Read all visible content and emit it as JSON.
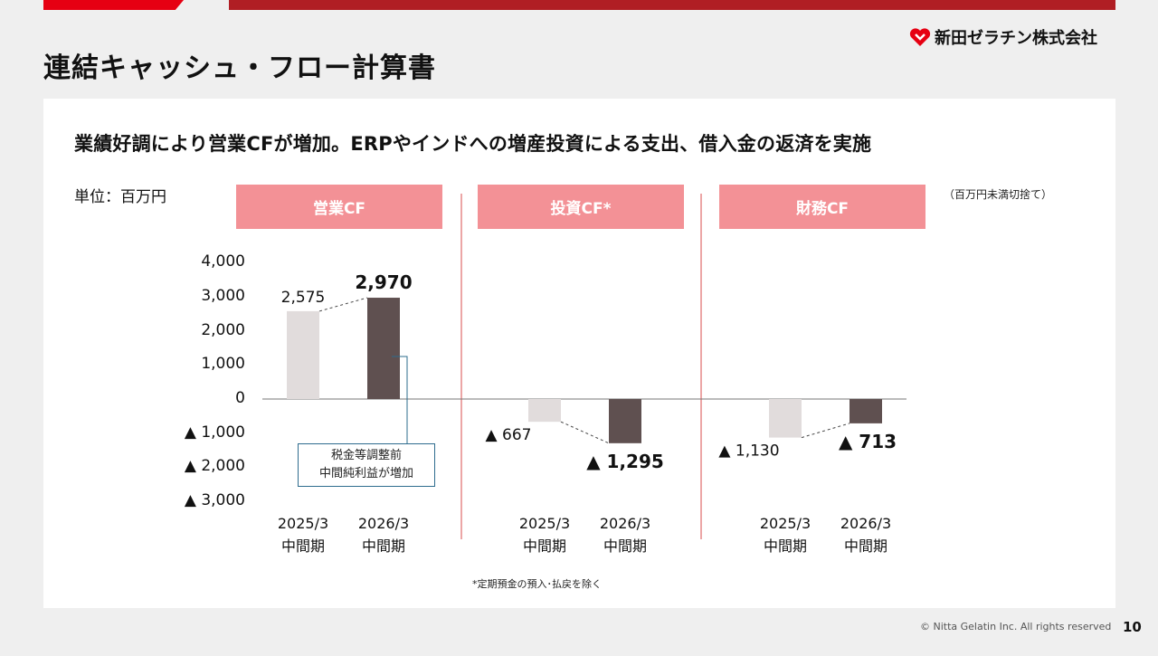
{
  "header": {
    "title": "連結キャッシュ・フロー計算書",
    "company_name": "新田ゼラチン株式会社"
  },
  "headline": "業績好調により営業CFが増加。ERPやインドへの増産投資による支出、借入金の返済を実施",
  "unit_label": "単位：百万円",
  "rounding_note": "（百万円未満切捨て）",
  "callout": {
    "line1": "税金等調整前",
    "line2": "中間純利益が増加"
  },
  "footnote": "*定期預金の預入･払戻を除く",
  "footer": {
    "copyright": "© Nitta Gelatin Inc. All rights reserved",
    "page_number": "10"
  },
  "colors": {
    "header_bg": "#f39196",
    "bar_prior": "#e1dcdc",
    "bar_current": "#5f5050",
    "divider": "#e06a6a",
    "brand_red": "#e60012"
  },
  "chart_data": {
    "type": "bar",
    "ylim": [
      -3000,
      4000
    ],
    "y_ticks": [
      {
        "value": 4000,
        "label": "4,000"
      },
      {
        "value": 3000,
        "label": "3,000"
      },
      {
        "value": 2000,
        "label": "2,000"
      },
      {
        "value": 1000,
        "label": "1,000"
      },
      {
        "value": 0,
        "label": "0"
      },
      {
        "value": -1000,
        "label": "▲ 1,000"
      },
      {
        "value": -2000,
        "label": "▲ 2,000"
      },
      {
        "value": -3000,
        "label": "▲ 3,000"
      }
    ],
    "groups": [
      {
        "name": "営業CF",
        "bars": [
          {
            "period": "2025/3",
            "sub": "中間期",
            "value": 2575,
            "label": "2,575",
            "bold": false
          },
          {
            "period": "2026/3",
            "sub": "中間期",
            "value": 2970,
            "label": "2,970",
            "bold": true
          }
        ]
      },
      {
        "name": "投資CF*",
        "bars": [
          {
            "period": "2025/3",
            "sub": "中間期",
            "value": -667,
            "label": "▲ 667",
            "bold": false
          },
          {
            "period": "2026/3",
            "sub": "中間期",
            "value": -1295,
            "label": "▲ 1,295",
            "bold": true
          }
        ]
      },
      {
        "name": "財務CF",
        "bars": [
          {
            "period": "2025/3",
            "sub": "中間期",
            "value": -1130,
            "label": "▲ 1,130",
            "bold": false
          },
          {
            "period": "2026/3",
            "sub": "中間期",
            "value": -713,
            "label": "▲ 713",
            "bold": true
          }
        ]
      }
    ]
  }
}
